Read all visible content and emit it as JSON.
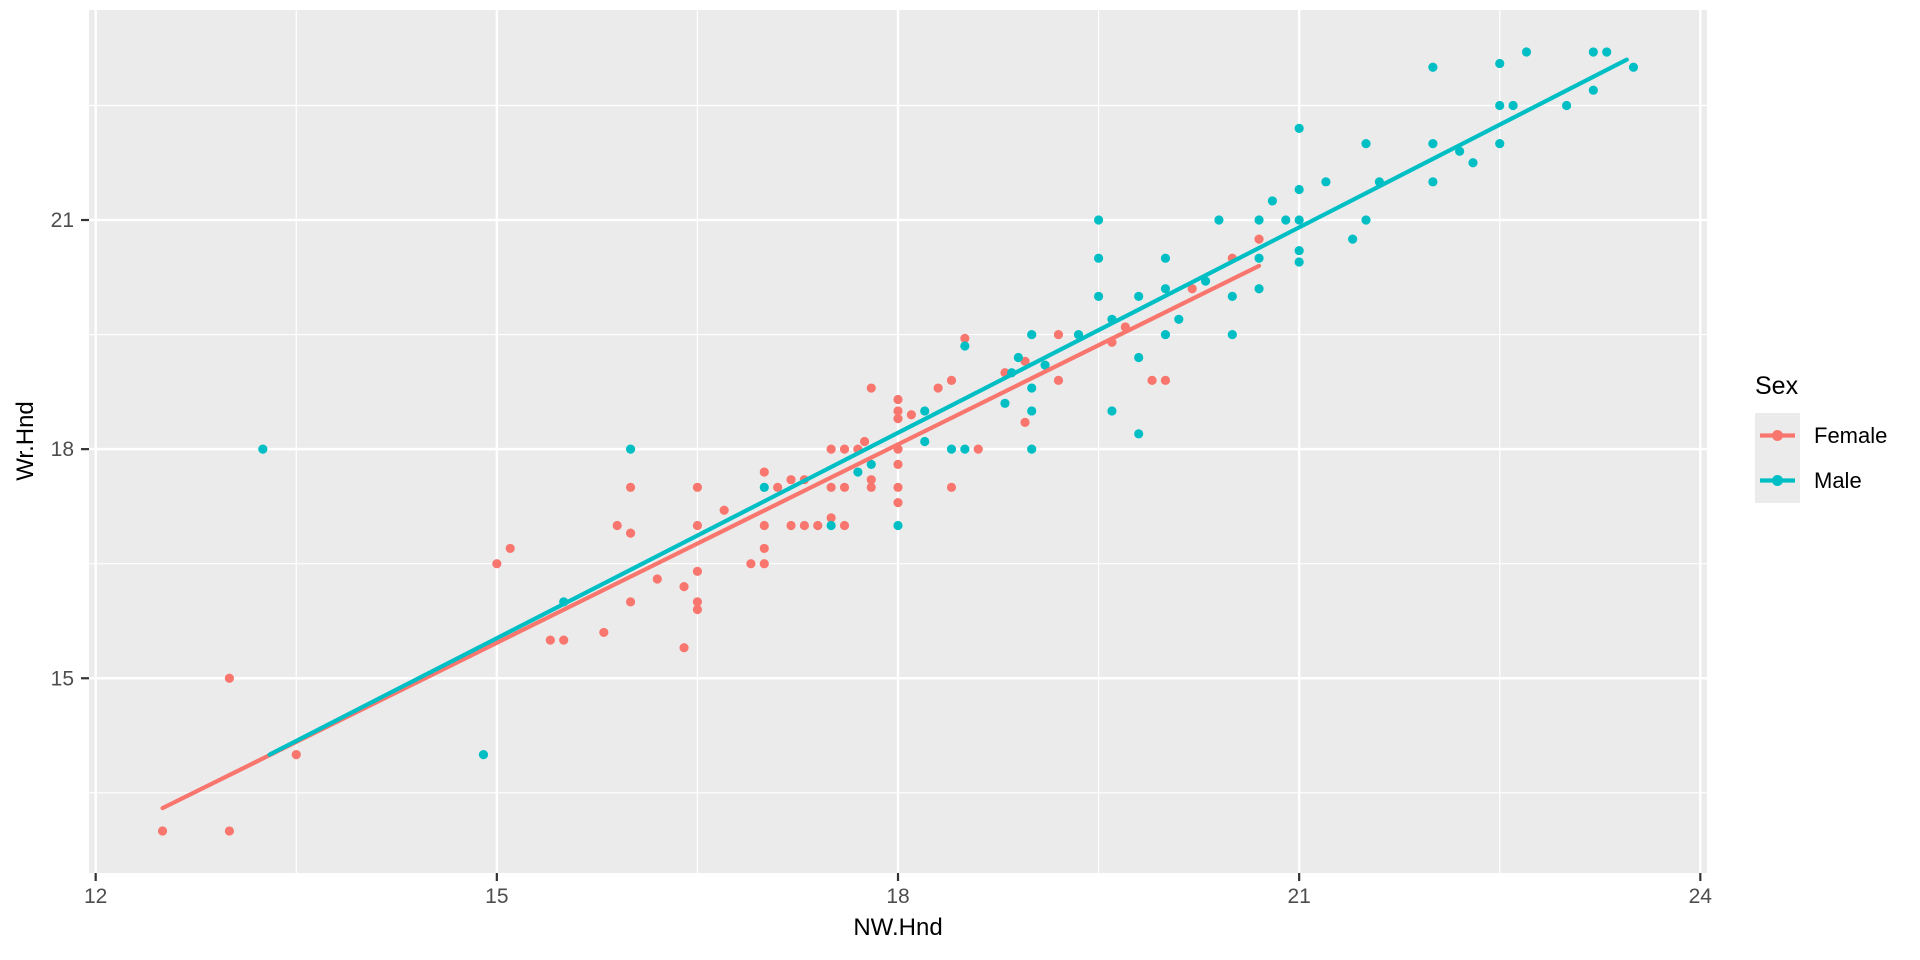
{
  "chart_data": {
    "type": "scatter",
    "title": "",
    "xlabel": "NW.Hnd",
    "ylabel": "Wr.Hnd",
    "xlim": [
      11.95,
      24.05
    ],
    "ylim": [
      12.45,
      23.75
    ],
    "x_ticks": [
      12,
      15,
      18,
      21,
      24
    ],
    "y_ticks": [
      15,
      18,
      21
    ],
    "x_minor_ticks": [
      13.5,
      16.5,
      19.5,
      22.5
    ],
    "y_minor_ticks": [
      13.5,
      16.5,
      19.5,
      22.5
    ],
    "grid": true,
    "colors": {
      "panel_bg": "#EBEBEB",
      "grid": "#FFFFFF",
      "tick_mark": "#333333",
      "tick_label": "#4D4D4D",
      "axis_title": "#000000",
      "legend_key_bg": "#EBEBEB"
    },
    "legend": {
      "title": "Sex",
      "position": "right",
      "entries": [
        {
          "label": "Female",
          "color": "#F8766D"
        },
        {
          "label": "Male",
          "color": "#00BFC4"
        }
      ]
    },
    "series": [
      {
        "name": "Female",
        "color": "#F8766D",
        "trend": {
          "x1": 12.5,
          "y1": 13.3,
          "x2": 20.7,
          "y2": 20.4
        },
        "points": [
          [
            12.5,
            13.0
          ],
          [
            13.0,
            13.0
          ],
          [
            13.0,
            15.0
          ],
          [
            13.5,
            14.0
          ],
          [
            15.0,
            16.5
          ],
          [
            15.1,
            16.7
          ],
          [
            15.4,
            15.5
          ],
          [
            15.5,
            15.5
          ],
          [
            15.8,
            15.6
          ],
          [
            15.9,
            17.0
          ],
          [
            16.0,
            16.9
          ],
          [
            16.0,
            17.5
          ],
          [
            16.0,
            16.0
          ],
          [
            16.2,
            16.3
          ],
          [
            16.4,
            16.2
          ],
          [
            16.4,
            15.4
          ],
          [
            16.5,
            17.5
          ],
          [
            16.5,
            17.0
          ],
          [
            16.5,
            16.4
          ],
          [
            16.5,
            16.0
          ],
          [
            16.5,
            15.9
          ],
          [
            16.7,
            17.2
          ],
          [
            16.9,
            16.5
          ],
          [
            17.0,
            17.7
          ],
          [
            17.0,
            17.0
          ],
          [
            17.0,
            16.7
          ],
          [
            17.0,
            16.5
          ],
          [
            17.1,
            17.5
          ],
          [
            17.2,
            17.6
          ],
          [
            17.2,
            17.0
          ],
          [
            17.3,
            17.6
          ],
          [
            17.3,
            17.0
          ],
          [
            17.4,
            17.0
          ],
          [
            17.5,
            17.1
          ],
          [
            17.5,
            17.5
          ],
          [
            17.5,
            18.0
          ],
          [
            17.6,
            18.0
          ],
          [
            17.6,
            17.5
          ],
          [
            17.6,
            17.0
          ],
          [
            17.7,
            18.0
          ],
          [
            17.75,
            18.1
          ],
          [
            17.8,
            17.6
          ],
          [
            17.8,
            17.5
          ],
          [
            17.8,
            18.8
          ],
          [
            18.0,
            18.65
          ],
          [
            18.0,
            18.5
          ],
          [
            18.0,
            18.4
          ],
          [
            18.0,
            18.0
          ],
          [
            18.0,
            17.8
          ],
          [
            18.0,
            17.5
          ],
          [
            18.0,
            17.3
          ],
          [
            18.1,
            18.45
          ],
          [
            18.3,
            18.8
          ],
          [
            18.4,
            18.9
          ],
          [
            18.4,
            17.5
          ],
          [
            18.5,
            19.45
          ],
          [
            18.6,
            18.0
          ],
          [
            18.8,
            19.0
          ],
          [
            18.95,
            19.15
          ],
          [
            18.95,
            18.35
          ],
          [
            19.2,
            19.5
          ],
          [
            19.2,
            18.9
          ],
          [
            19.6,
            19.4
          ],
          [
            19.7,
            19.6
          ],
          [
            19.9,
            18.9
          ],
          [
            20.0,
            18.9
          ],
          [
            20.2,
            20.1
          ],
          [
            20.5,
            20.5
          ],
          [
            20.7,
            20.75
          ]
        ]
      },
      {
        "name": "Male",
        "color": "#00BFC4",
        "trend": {
          "x1": 13.3,
          "y1": 14.0,
          "x2": 23.45,
          "y2": 23.1
        },
        "points": [
          [
            13.25,
            18.0
          ],
          [
            14.9,
            14.0
          ],
          [
            15.5,
            16.0
          ],
          [
            16.0,
            18.0
          ],
          [
            17.0,
            17.5
          ],
          [
            17.5,
            17.0
          ],
          [
            17.7,
            17.7
          ],
          [
            17.8,
            17.8
          ],
          [
            18.0,
            17.0
          ],
          [
            18.2,
            18.1
          ],
          [
            18.2,
            18.5
          ],
          [
            18.4,
            18.0
          ],
          [
            18.5,
            18.0
          ],
          [
            18.5,
            19.35
          ],
          [
            18.85,
            19.0
          ],
          [
            18.8,
            18.6
          ],
          [
            18.9,
            19.2
          ],
          [
            19.0,
            19.5
          ],
          [
            19.0,
            18.8
          ],
          [
            19.0,
            18.5
          ],
          [
            19.0,
            18.0
          ],
          [
            19.1,
            19.1
          ],
          [
            19.35,
            19.5
          ],
          [
            19.5,
            21.0
          ],
          [
            19.5,
            20.5
          ],
          [
            19.5,
            20.0
          ],
          [
            19.6,
            19.7
          ],
          [
            19.6,
            18.5
          ],
          [
            19.8,
            20.0
          ],
          [
            19.8,
            19.2
          ],
          [
            19.8,
            18.2
          ],
          [
            20.0,
            20.5
          ],
          [
            20.0,
            20.1
          ],
          [
            20.0,
            19.5
          ],
          [
            20.1,
            19.7
          ],
          [
            20.3,
            20.2
          ],
          [
            20.4,
            21.0
          ],
          [
            20.5,
            20.0
          ],
          [
            20.5,
            19.5
          ],
          [
            20.7,
            21.0
          ],
          [
            20.7,
            20.5
          ],
          [
            20.7,
            20.1
          ],
          [
            20.8,
            21.25
          ],
          [
            20.9,
            21.0
          ],
          [
            21.0,
            22.2
          ],
          [
            21.0,
            21.4
          ],
          [
            21.0,
            21.0
          ],
          [
            21.0,
            20.6
          ],
          [
            21.0,
            20.45
          ],
          [
            21.2,
            21.5
          ],
          [
            21.4,
            20.75
          ],
          [
            21.5,
            22.0
          ],
          [
            21.5,
            21.0
          ],
          [
            21.6,
            21.5
          ],
          [
            22.0,
            23.0
          ],
          [
            22.0,
            22.0
          ],
          [
            22.0,
            21.5
          ],
          [
            22.2,
            21.9
          ],
          [
            22.3,
            21.75
          ],
          [
            22.5,
            23.05
          ],
          [
            22.5,
            22.5
          ],
          [
            22.5,
            22.0
          ],
          [
            22.6,
            22.5
          ],
          [
            22.7,
            23.2
          ],
          [
            23.0,
            22.5
          ],
          [
            23.2,
            23.2
          ],
          [
            23.2,
            22.7
          ],
          [
            23.3,
            23.2
          ],
          [
            23.5,
            23.0
          ]
        ]
      }
    ]
  }
}
